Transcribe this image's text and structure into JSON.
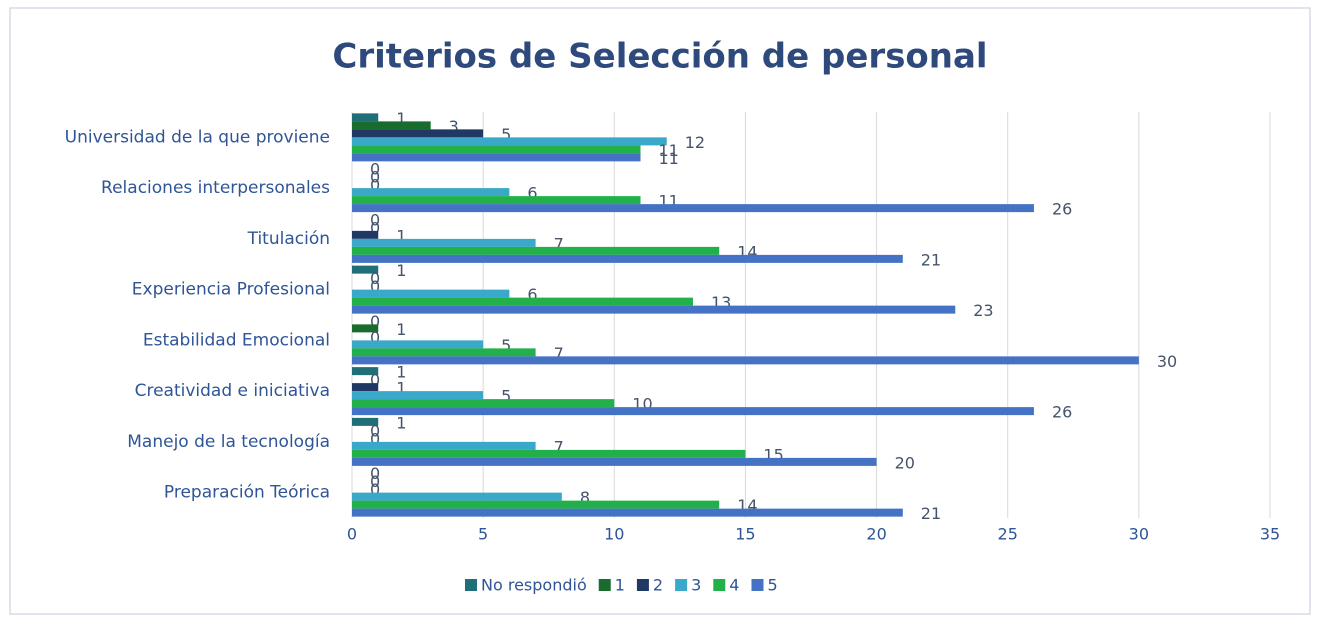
{
  "chart_data": {
    "type": "bar",
    "orientation": "horizontal",
    "title": "Criterios de Selección de personal",
    "categories": [
      "Universidad de la que proviene",
      "Relaciones interpersonales",
      "Titulación",
      "Experiencia Profesional",
      "Estabilidad Emocional",
      "Creatividad e iniciativa",
      "Manejo de la tecnología",
      "Preparación Teórica"
    ],
    "series": [
      {
        "name": "No respondió",
        "color": "#1f6e78",
        "values": [
          1,
          0,
          0,
          1,
          0,
          1,
          1,
          0
        ]
      },
      {
        "name": "1",
        "color": "#1a6b2e",
        "values": [
          3,
          0,
          0,
          0,
          1,
          0,
          0,
          0
        ]
      },
      {
        "name": "2",
        "color": "#1f3864",
        "values": [
          5,
          0,
          1,
          0,
          0,
          1,
          0,
          0
        ]
      },
      {
        "name": "3",
        "color": "#3aa8c8",
        "values": [
          12,
          6,
          7,
          6,
          5,
          5,
          7,
          8
        ]
      },
      {
        "name": "4",
        "color": "#22b04a",
        "values": [
          11,
          11,
          14,
          13,
          7,
          10,
          15,
          14
        ]
      },
      {
        "name": "5",
        "color": "#4472c4",
        "values": [
          11,
          26,
          21,
          23,
          30,
          26,
          20,
          21
        ]
      }
    ],
    "xlim": [
      0,
      35
    ],
    "xticks": [
      0,
      5,
      10,
      15,
      20,
      25,
      30,
      35
    ],
    "grid": true,
    "legend": "bottom"
  }
}
